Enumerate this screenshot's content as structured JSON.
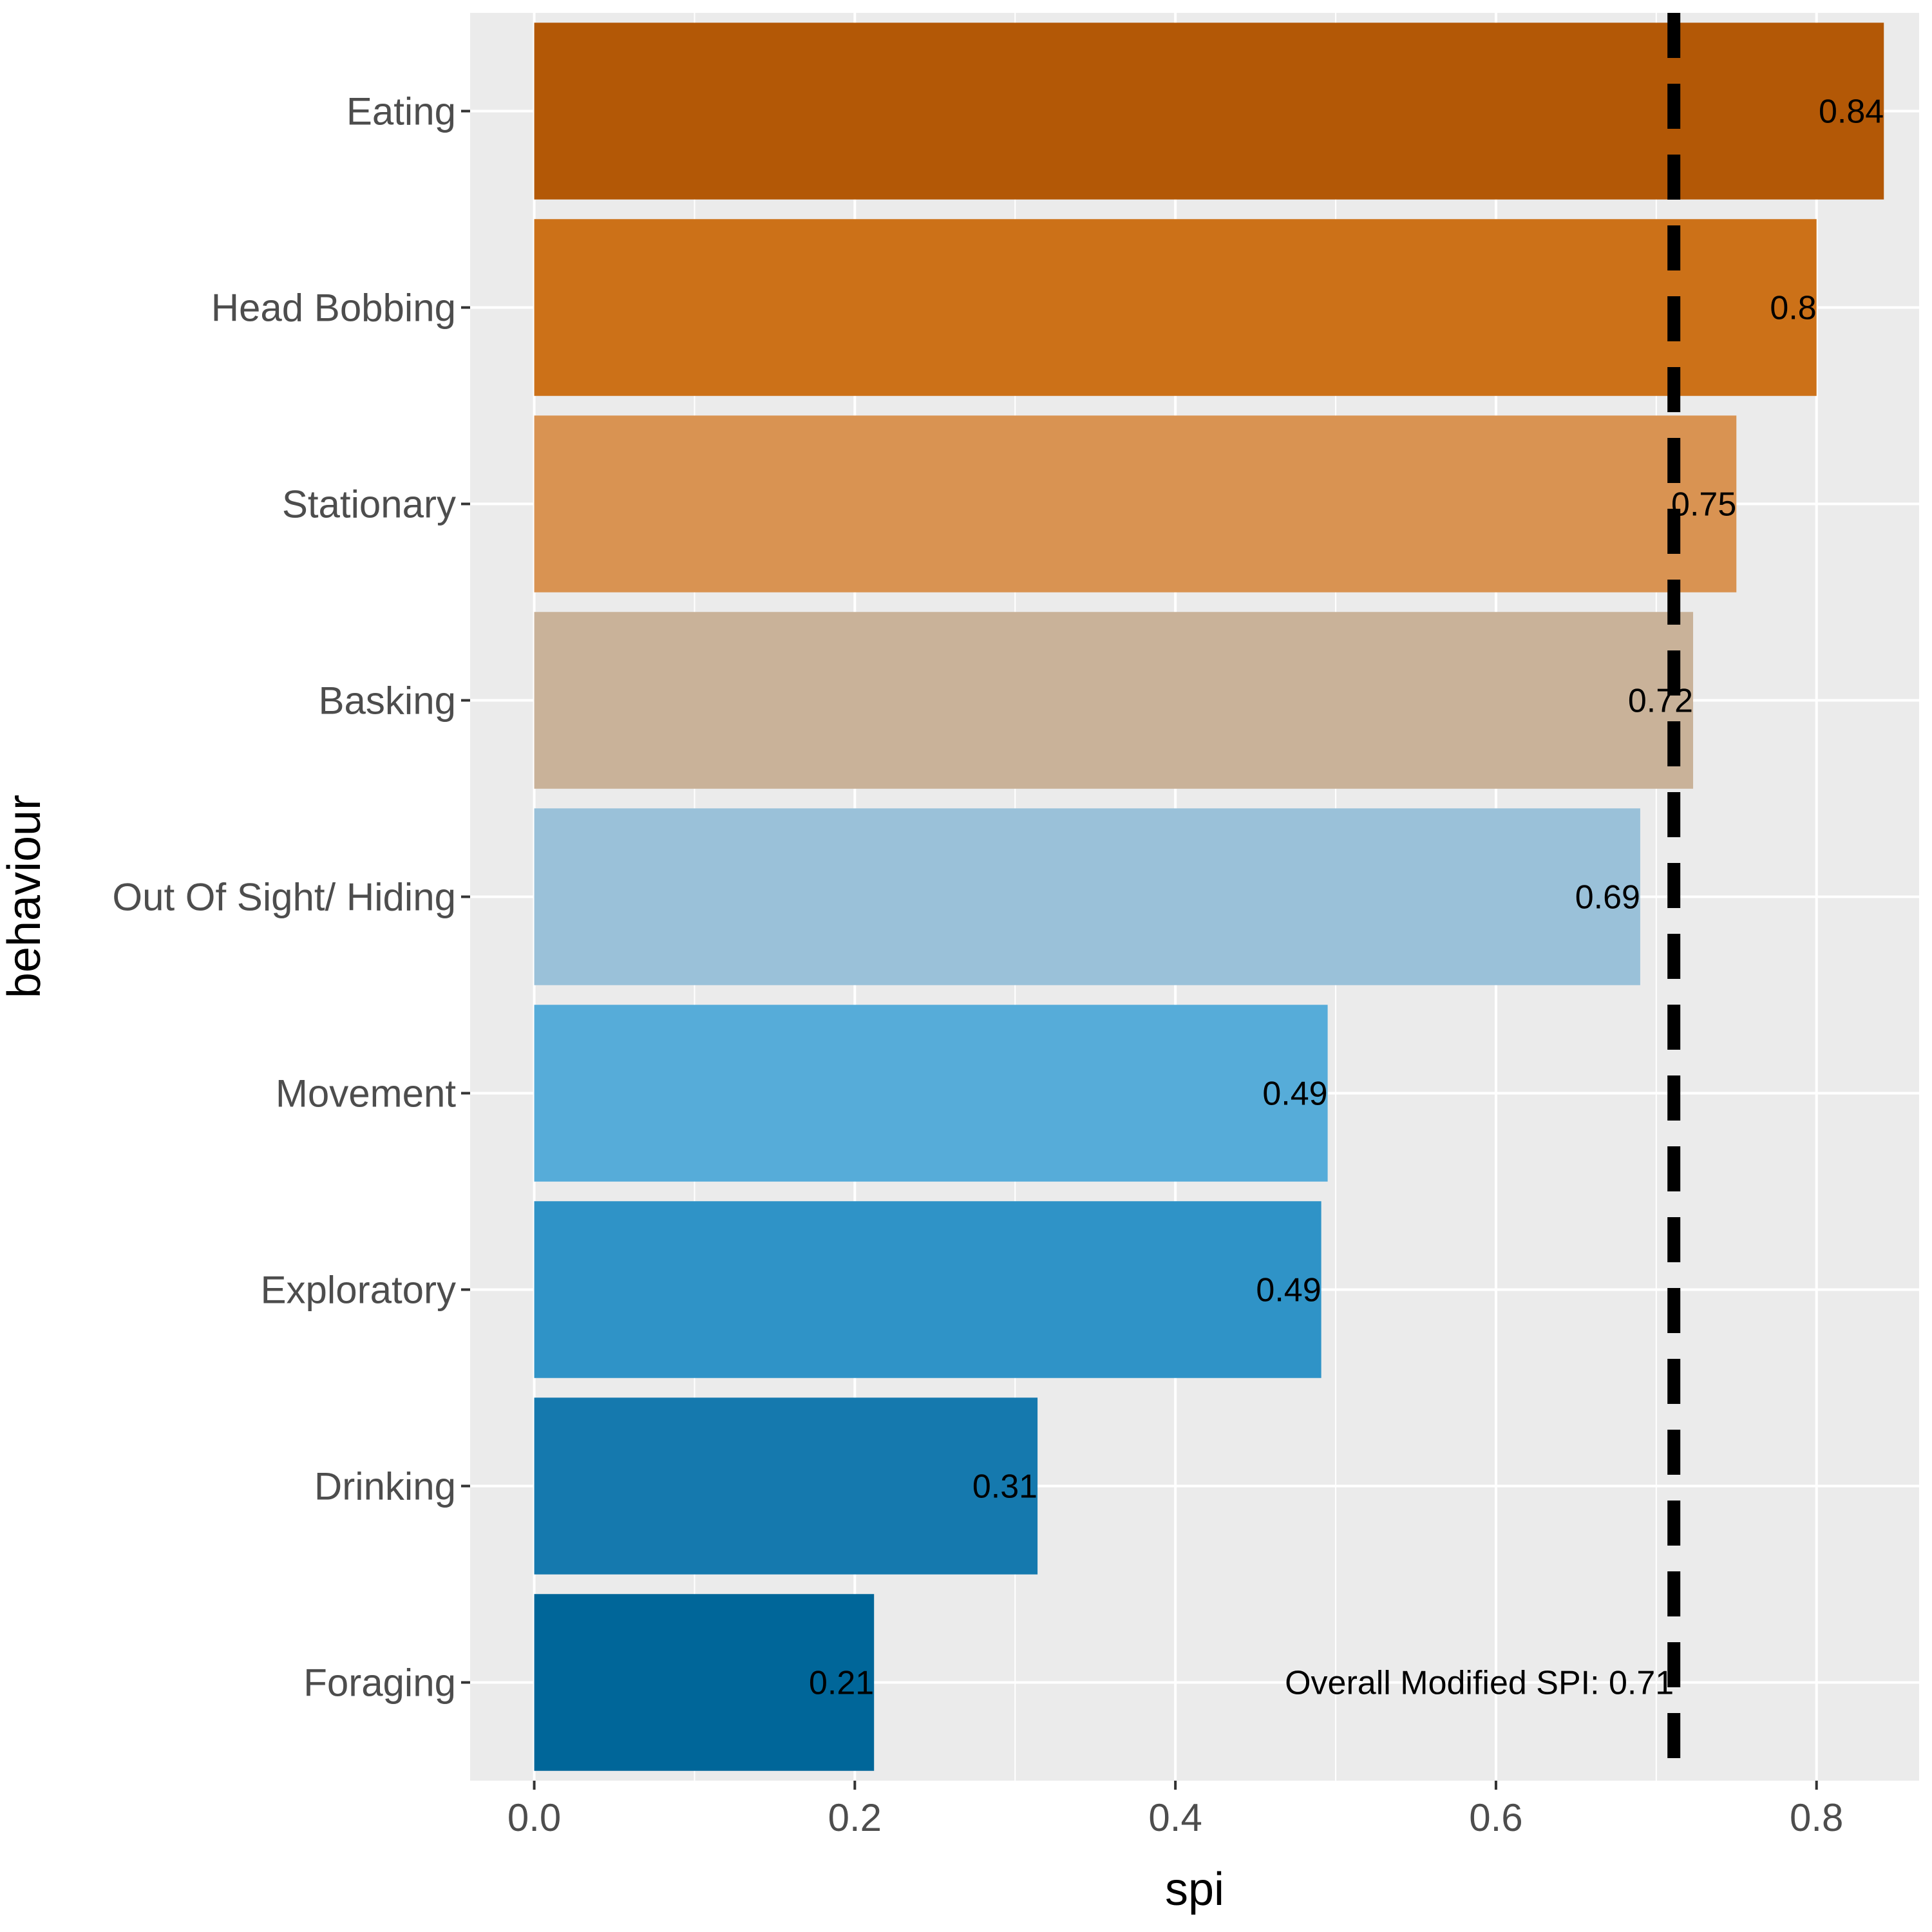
{
  "chart_data": {
    "type": "bar",
    "orientation": "horizontal",
    "xlabel": "spi",
    "ylabel": "behaviour",
    "xlim": [
      -0.04,
      0.864
    ],
    "x_ticks": [
      "0.0",
      "0.2",
      "0.4",
      "0.6",
      "0.8"
    ],
    "grid": true,
    "bars": [
      {
        "category": "Eating",
        "value": 0.842,
        "label": "0.84",
        "color": "#b35806"
      },
      {
        "category": "Head Bobbing",
        "value": 0.8,
        "label": "0.8",
        "color": "#cc7118"
      },
      {
        "category": "Stationary",
        "value": 0.75,
        "label": "0.75",
        "color": "#d99352"
      },
      {
        "category": "Basking",
        "value": 0.723,
        "label": "0.72",
        "color": "#c9b299"
      },
      {
        "category": "Out Of Sight/ Hiding",
        "value": 0.69,
        "label": "0.69",
        "color": "#9ac1d9"
      },
      {
        "category": "Movement",
        "value": 0.495,
        "label": "0.49",
        "color": "#56acd9"
      },
      {
        "category": "Exploratory",
        "value": 0.491,
        "label": "0.49",
        "color": "#2f93c7"
      },
      {
        "category": "Drinking",
        "value": 0.314,
        "label": "0.31",
        "color": "#1579ae"
      },
      {
        "category": "Foraging",
        "value": 0.212,
        "label": "0.21",
        "color": "#006699"
      }
    ],
    "reference_line": {
      "value": 0.711,
      "style": "dashed",
      "label": "Overall Modified SPI: 0.71"
    }
  }
}
